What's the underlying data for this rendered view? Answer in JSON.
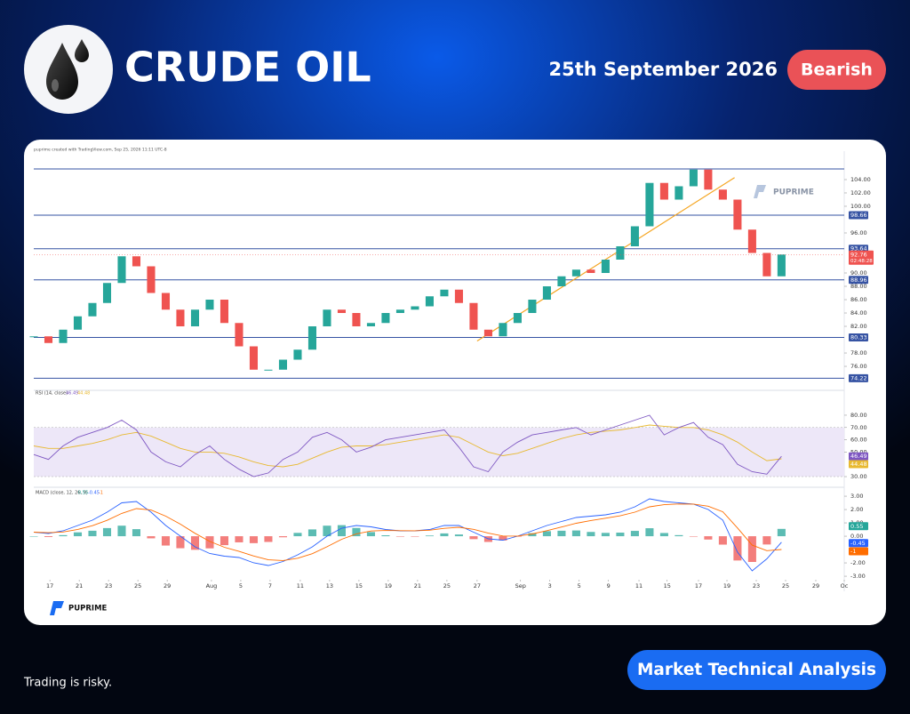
{
  "header": {
    "title": "CRUDE OIL",
    "date": "25th September 2026",
    "sentiment": "Bearish"
  },
  "footer": {
    "disclaimer": "Trading is risky.",
    "category": "Market Technical Analysis"
  },
  "chart_data": {
    "type": "candlestick",
    "caption": "puprime created with TradingView.com, Sep 25, 2026 11:11 UTC-8",
    "watermark": "PUPRIME",
    "brand": "PUPRIME",
    "x": [
      0,
      0.5,
      1,
      1.5,
      2,
      2.5,
      3,
      3.5,
      4,
      4.5,
      5,
      5.5,
      6,
      6.5,
      7,
      7.5,
      8,
      8.5,
      9,
      9.5,
      10,
      10.5,
      11,
      11.5,
      12,
      12.5,
      13,
      13.5,
      14,
      14.5,
      15,
      15.5,
      16,
      16.5,
      17,
      17.5,
      18,
      18.5,
      19,
      19.5,
      20,
      20.5,
      21,
      21.5,
      22,
      22.5,
      23,
      23.5,
      24,
      24.5,
      25,
      25.5
    ],
    "close": [
      80.5,
      79.5,
      81.5,
      83.5,
      85.5,
      88.5,
      92.5,
      91,
      87,
      84.5,
      82,
      84.5,
      86,
      82.5,
      79,
      75.5,
      75.5,
      77,
      78.5,
      82,
      84.5,
      84,
      82,
      82.5,
      84,
      84.5,
      85,
      86.5,
      87.5,
      85.5,
      81.5,
      80.5,
      82.5,
      84,
      86,
      88,
      89.5,
      90.5,
      90,
      92,
      94,
      97,
      103.5,
      101,
      103,
      105.5,
      102.5,
      101,
      96.5,
      93,
      89.5,
      92.76
    ],
    "up_color": "#26a69a",
    "down_color": "#ef5350",
    "xlim": [
      0,
      27.64
    ],
    "xticks": [
      {
        "value": 0.55,
        "label": "17"
      },
      {
        "value": 1.55,
        "label": "21"
      },
      {
        "value": 2.55,
        "label": "23"
      },
      {
        "value": 3.55,
        "label": "25"
      },
      {
        "value": 4.55,
        "label": "29"
      },
      {
        "value": 6.06,
        "label": "Aug"
      },
      {
        "value": 7.06,
        "label": "5"
      },
      {
        "value": 8.06,
        "label": "7"
      },
      {
        "value": 9.09,
        "label": "11"
      },
      {
        "value": 10.09,
        "label": "13"
      },
      {
        "value": 11.09,
        "label": "15"
      },
      {
        "value": 12.09,
        "label": "19"
      },
      {
        "value": 13.09,
        "label": "21"
      },
      {
        "value": 14.09,
        "label": "25"
      },
      {
        "value": 15.12,
        "label": "27"
      },
      {
        "value": 16.6,
        "label": "Sep"
      },
      {
        "value": 17.6,
        "label": "3"
      },
      {
        "value": 18.6,
        "label": "5"
      },
      {
        "value": 19.6,
        "label": "9"
      },
      {
        "value": 20.64,
        "label": "11"
      },
      {
        "value": 21.6,
        "label": "15"
      },
      {
        "value": 22.67,
        "label": "17"
      },
      {
        "value": 23.64,
        "label": "19"
      },
      {
        "value": 24.64,
        "label": "23"
      },
      {
        "value": 25.64,
        "label": "25"
      },
      {
        "value": 26.67,
        "label": "29"
      },
      {
        "value": 27.64,
        "label": "Oc"
      }
    ],
    "ylim": [
      72.67,
      106.93
    ],
    "yticks": [
      {
        "value": 76,
        "label": "76.00"
      },
      {
        "value": 78,
        "label": "78.00"
      },
      {
        "value": 82,
        "label": "82.00"
      },
      {
        "value": 84,
        "label": "84.00"
      },
      {
        "value": 86,
        "label": "86.00"
      },
      {
        "value": 88,
        "label": "88.00"
      },
      {
        "value": 90,
        "label": "90.00"
      },
      {
        "value": 96,
        "label": "96.00"
      },
      {
        "value": 100,
        "label": "100.00"
      },
      {
        "value": 102,
        "label": "102.00"
      },
      {
        "value": 104,
        "label": "104.00"
      }
    ],
    "top_level": 105.6,
    "levels": [
      98.66,
      93.64,
      88.96,
      80.33,
      74.22
    ],
    "level_color": "#3653a3",
    "countdown": "02:48:28",
    "trendline": {
      "color": "#f5a623",
      "x": [
        15.12,
        23.9
      ],
      "y": [
        79.8,
        104.3
      ]
    },
    "rsi": {
      "title": "RSI (14, close)",
      "ylim": [
        23.5,
        95.9
      ],
      "yticks": [
        {
          "value": 30,
          "label": "30.00"
        },
        {
          "value": 50,
          "label": "50.00"
        },
        {
          "value": 60,
          "label": "60.00"
        },
        {
          "value": 70,
          "label": "70.00"
        },
        {
          "value": 80,
          "label": "80.00"
        }
      ],
      "band": [
        30,
        70
      ],
      "band_color": "#ede7f8",
      "color": "#7e57c2",
      "values": [
        48,
        44,
        55,
        62,
        66,
        70,
        76,
        68,
        50,
        42,
        38,
        48,
        55,
        44,
        36,
        30,
        33,
        44,
        50,
        62,
        66,
        60,
        50,
        54,
        60,
        62,
        64,
        66,
        68,
        54,
        38,
        34,
        50,
        58,
        64,
        66,
        68,
        70,
        64,
        68,
        72,
        76,
        80,
        64,
        70,
        74,
        62,
        56,
        40,
        34,
        32,
        46.49
      ],
      "ma_color": "#e8b930",
      "ma": [
        55,
        53,
        53,
        55,
        57,
        60,
        64,
        66,
        63,
        58,
        53,
        50,
        50,
        49,
        46,
        42,
        39,
        38,
        40,
        45,
        50,
        54,
        55,
        55,
        56,
        58,
        60,
        62,
        64,
        62,
        56,
        50,
        47,
        49,
        53,
        57,
        61,
        64,
        66,
        67,
        68,
        70,
        72,
        71,
        70,
        70,
        68,
        64,
        58,
        50,
        43,
        44.48
      ]
    },
    "macd": {
      "title": "MACD (close, 12, 26, 9)",
      "ylim": [
        -3.13,
        3.47
      ],
      "yticks": [
        {
          "value": -3,
          "label": "-3.00"
        },
        {
          "value": -2,
          "label": "-2.00"
        },
        {
          "value": 0,
          "label": "0.00"
        },
        {
          "value": 1,
          "label": "1.00"
        },
        {
          "value": 2,
          "label": "2.00"
        },
        {
          "value": 3,
          "label": "3.00"
        }
      ],
      "hist_up_color": "#26a69a",
      "hist_down_color": "#ef5350",
      "histogram": [
        0,
        -0.06,
        0.08,
        0.29,
        0.41,
        0.61,
        0.79,
        0.53,
        -0.16,
        -0.7,
        -0.9,
        -1.02,
        -0.91,
        -0.67,
        -0.46,
        -0.52,
        -0.43,
        -0.08,
        0.25,
        0.51,
        0.79,
        0.83,
        0.62,
        0.31,
        0.07,
        -0.02,
        -0.01,
        0.05,
        0.21,
        0.13,
        -0.22,
        -0.43,
        -0.32,
        -0.01,
        0.23,
        0.38,
        0.41,
        0.43,
        0.32,
        0.25,
        0.27,
        0.4,
        0.6,
        0.24,
        0.08,
        -0.01,
        -0.25,
        -0.63,
        -1.82,
        -1.93,
        -0.62,
        0.55
      ],
      "macd_color": "#2962ff",
      "macd": [
        0.3,
        0.2,
        0.4,
        0.8,
        1.2,
        1.8,
        2.5,
        2.6,
        1.8,
        0.8,
        0,
        -0.8,
        -1.3,
        -1.5,
        -1.6,
        -2,
        -2.2,
        -1.9,
        -1.4,
        -0.8,
        0,
        0.6,
        0.8,
        0.7,
        0.5,
        0.4,
        0.4,
        0.5,
        0.8,
        0.8,
        0.3,
        -0.2,
        -0.3,
        0,
        0.4,
        0.8,
        1.1,
        1.4,
        1.5,
        1.6,
        1.8,
        2.2,
        2.8,
        2.6,
        2.5,
        2.4,
        2,
        1.2,
        -1.2,
        -2.6,
        -1.7,
        -0.45
      ],
      "signal_color": "#ff6d00",
      "signal": [
        0.3,
        0.26,
        0.32,
        0.51,
        0.79,
        1.19,
        1.71,
        2.07,
        1.96,
        1.5,
        0.9,
        0.22,
        -0.39,
        -0.83,
        -1.14,
        -1.48,
        -1.77,
        -1.82,
        -1.65,
        -1.31,
        -0.79,
        -0.23,
        0.18,
        0.39,
        0.43,
        0.42,
        0.41,
        0.45,
        0.59,
        0.67,
        0.52,
        0.23,
        0.02,
        0.01,
        0.17,
        0.42,
        0.69,
        0.97,
        1.18,
        1.35,
        1.53,
        1.8,
        2.2,
        2.36,
        2.42,
        2.41,
        2.25,
        1.83,
        0.62,
        -0.67,
        -1.08,
        -1.0
      ]
    }
  }
}
